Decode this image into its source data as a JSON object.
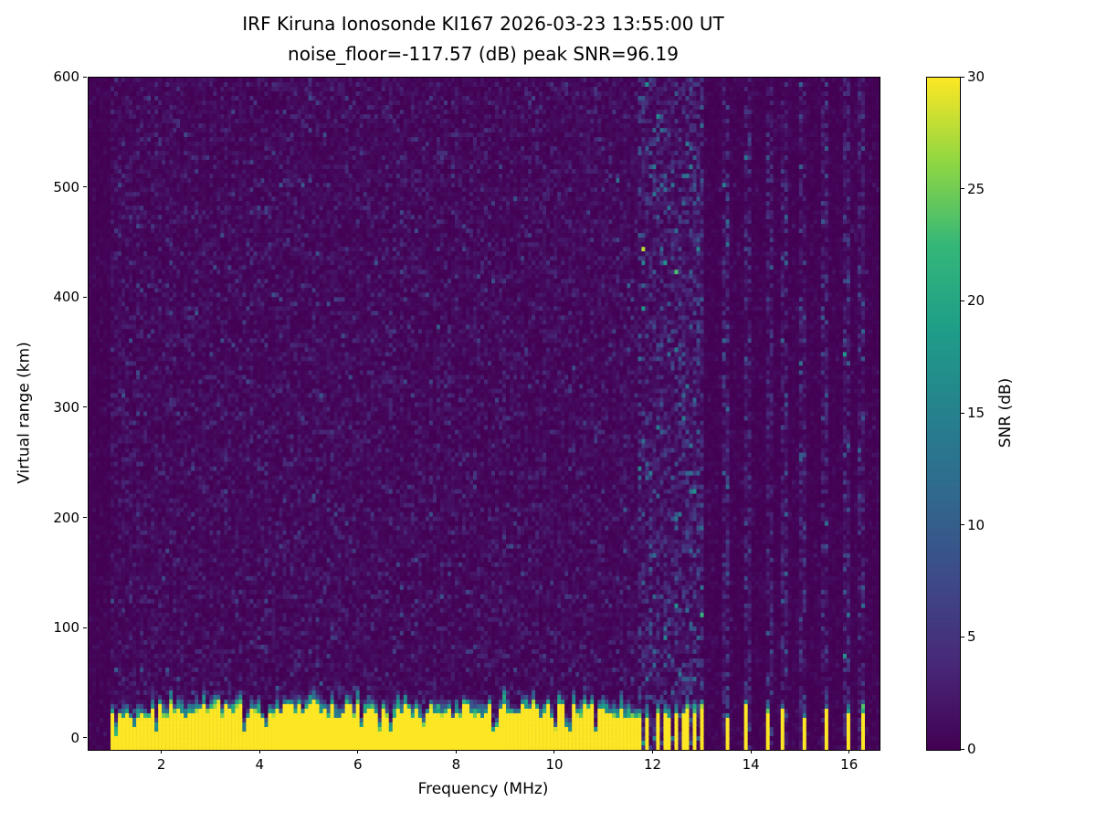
{
  "chart_data": {
    "type": "heatmap",
    "title": "IRF Kiruna Ionosonde KI167 2026-03-23 13:55:00  UT\nnoise_floor=-117.57 (dB) peak SNR=96.19",
    "title_line1": "IRF Kiruna Ionosonde KI167 2026-03-23 13:55:00  UT",
    "title_line2": "noise_floor=-117.57 (dB) peak SNR=96.19",
    "xlabel": "Frequency (MHz)",
    "ylabel": "Virtual range (km)",
    "xlim": [
      0.5,
      16.6
    ],
    "ylim": [
      -10,
      600
    ],
    "xticks": [
      2,
      4,
      6,
      8,
      10,
      12,
      14,
      16
    ],
    "yticks": [
      0,
      100,
      200,
      300,
      400,
      500,
      600
    ],
    "grid": false,
    "legend": null,
    "colormap": "viridis",
    "colormap_stops": [
      [
        0.0,
        68,
        1,
        84
      ],
      [
        0.125,
        72,
        40,
        120
      ],
      [
        0.25,
        62,
        74,
        137
      ],
      [
        0.375,
        49,
        104,
        142
      ],
      [
        0.5,
        38,
        130,
        142
      ],
      [
        0.625,
        31,
        158,
        137
      ],
      [
        0.75,
        53,
        183,
        121
      ],
      [
        0.875,
        144,
        215,
        67
      ],
      [
        1.0,
        253,
        231,
        37
      ]
    ],
    "colorbar": {
      "label": "SNR (dB)",
      "ticks": [
        0,
        5,
        10,
        15,
        20,
        25,
        30
      ],
      "vmin": 0,
      "vmax": 30
    },
    "features": {
      "noise_floor_db": -117.57,
      "peak_snr_db": 96.19,
      "background": {
        "mean_snr_db": 1.2,
        "seed": 167
      },
      "quiet_left_edge_mhz": 0.93,
      "echo_band": {
        "freq_start_mhz": 0.95,
        "freq_end_mhz": 13.05,
        "snr_db": 30,
        "top_km_min": 17,
        "top_km_jitter": 16,
        "transition_km": 12,
        "notch_probability": 0.07
      },
      "rfi_comb": {
        "freq_start_mhz": 11.65,
        "freq_end_mhz": 13.05,
        "period_mhz": 0.19,
        "duty": 0.52,
        "noise_mean_db": 2.8
      },
      "rfi_stripes_mhz": [
        13.5,
        13.9,
        14.35,
        14.65,
        15.05,
        15.5,
        15.95,
        16.25
      ],
      "stripe_halfwidth_mhz": 0.045,
      "stripe_noise_mean_db": 2.2,
      "right_quiet_mean_db": 0.4
    }
  },
  "colors": {
    "figure_background": "#ffffff",
    "axes_background": "#440154",
    "text": "#000000",
    "band_peak": "#fde725"
  }
}
